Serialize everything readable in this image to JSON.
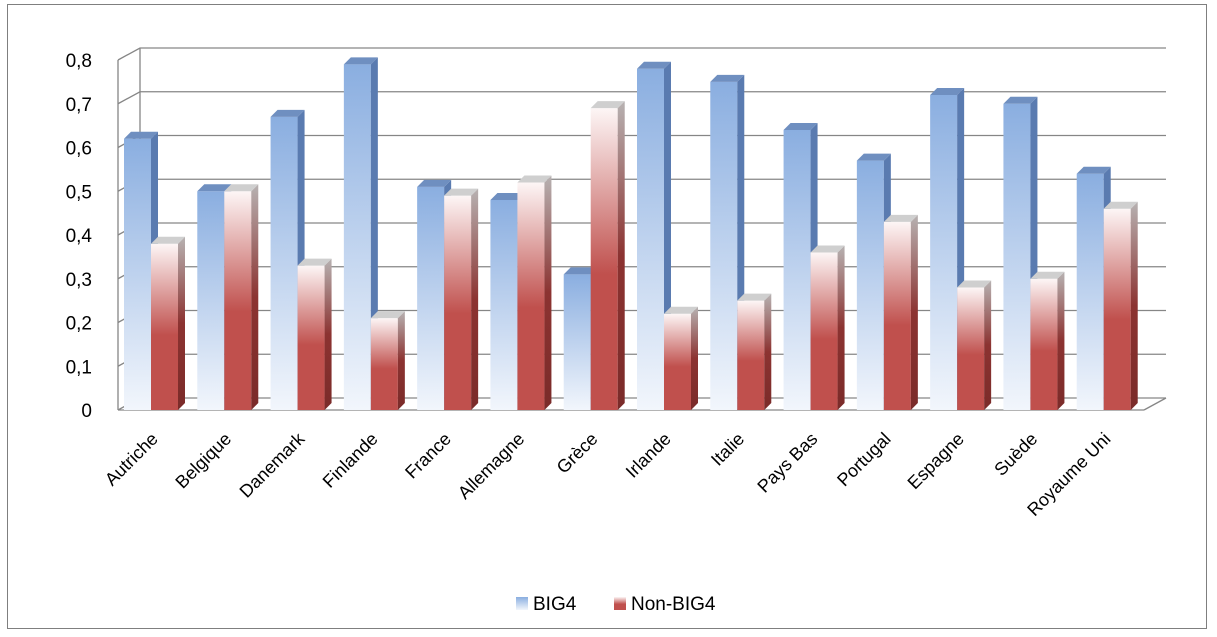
{
  "chart_data": {
    "type": "bar",
    "title": "",
    "xlabel": "",
    "ylabel": "",
    "ylim": [
      0,
      0.8
    ],
    "yticks": [
      "0",
      "0,1",
      "0,2",
      "0,3",
      "0,4",
      "0,5",
      "0,6",
      "0,7",
      "0,8"
    ],
    "categories": [
      "Autriche",
      "Belgique",
      "Danemark",
      "Finlande",
      "France",
      "Allemagne",
      "Grèce",
      "Irlande",
      "Italie",
      "Pays Bas",
      "Portugal",
      "Espagne",
      "Suède",
      "Royaume Uni"
    ],
    "series": [
      {
        "name": "BIG4",
        "color": "#4f81bd",
        "values": [
          0.62,
          0.5,
          0.67,
          0.79,
          0.51,
          0.48,
          0.31,
          0.78,
          0.75,
          0.64,
          0.57,
          0.72,
          0.7,
          0.54
        ]
      },
      {
        "name": "Non-BIG4",
        "color": "#c0504d",
        "values": [
          0.38,
          0.5,
          0.33,
          0.21,
          0.49,
          0.52,
          0.69,
          0.22,
          0.25,
          0.36,
          0.43,
          0.28,
          0.3,
          0.46
        ]
      }
    ],
    "grid": true,
    "legend_position": "bottom",
    "style": "3d-clustered-column"
  }
}
